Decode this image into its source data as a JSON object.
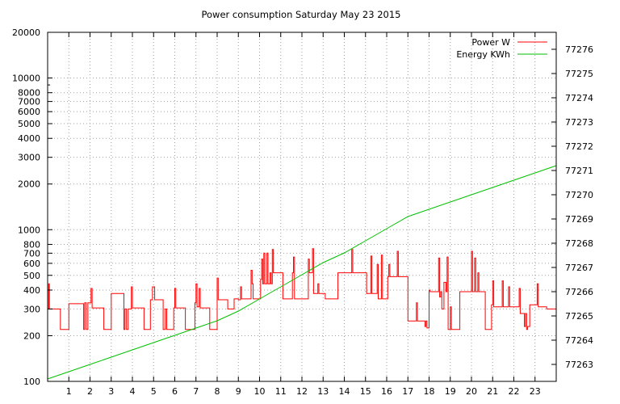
{
  "chart_data": {
    "type": "line",
    "title": "Power consumption Saturday May 23 2015",
    "xlabel": "",
    "ylabel": "",
    "y2label": "",
    "x_ticks": [
      1,
      2,
      3,
      4,
      5,
      6,
      7,
      8,
      9,
      10,
      11,
      12,
      13,
      14,
      15,
      16,
      17,
      18,
      19,
      20,
      21,
      22,
      23
    ],
    "xlim": [
      0,
      24
    ],
    "ylim": [
      100,
      20000
    ],
    "y_scale": "log",
    "y_ticks": [
      100,
      200,
      300,
      400,
      500,
      600,
      700,
      800,
      1000,
      2000,
      3000,
      4000,
      5000,
      6000,
      7000,
      8000,
      10000,
      20000
    ],
    "y2lim": [
      77262.3,
      77276.7
    ],
    "y2_ticks": [
      77263,
      77264,
      77265,
      77266,
      77267,
      77268,
      77269,
      77270,
      77271,
      77272,
      77273,
      77274,
      77275,
      77276
    ],
    "grid": true,
    "legend_position": "top-right",
    "series": [
      {
        "name": "Power W",
        "axis": "left",
        "color": "#ff0000",
        "step": true,
        "points": [
          [
            0.0,
            300
          ],
          [
            0.05,
            440
          ],
          [
            0.08,
            300
          ],
          [
            0.55,
            300
          ],
          [
            0.6,
            220
          ],
          [
            0.95,
            220
          ],
          [
            1.0,
            325
          ],
          [
            1.65,
            325
          ],
          [
            1.7,
            220
          ],
          [
            1.75,
            330
          ],
          [
            1.82,
            220
          ],
          [
            1.9,
            330
          ],
          [
            2.05,
            410
          ],
          [
            2.1,
            305
          ],
          [
            2.6,
            305
          ],
          [
            2.65,
            220
          ],
          [
            2.95,
            220
          ],
          [
            3.0,
            380
          ],
          [
            3.55,
            380
          ],
          [
            3.6,
            220
          ],
          [
            3.65,
            300
          ],
          [
            3.72,
            220
          ],
          [
            3.8,
            300
          ],
          [
            3.95,
            420
          ],
          [
            4.0,
            305
          ],
          [
            4.5,
            305
          ],
          [
            4.55,
            220
          ],
          [
            4.8,
            220
          ],
          [
            4.85,
            345
          ],
          [
            4.95,
            420
          ],
          [
            5.05,
            345
          ],
          [
            5.4,
            345
          ],
          [
            5.45,
            220
          ],
          [
            5.55,
            300
          ],
          [
            5.62,
            220
          ],
          [
            5.85,
            220
          ],
          [
            5.95,
            305
          ],
          [
            6.0,
            410
          ],
          [
            6.05,
            305
          ],
          [
            6.45,
            305
          ],
          [
            6.5,
            220
          ],
          [
            6.9,
            220
          ],
          [
            6.95,
            330
          ],
          [
            7.0,
            440
          ],
          [
            7.05,
            310
          ],
          [
            7.15,
            410
          ],
          [
            7.2,
            305
          ],
          [
            7.6,
            305
          ],
          [
            7.65,
            220
          ],
          [
            7.95,
            220
          ],
          [
            8.0,
            480
          ],
          [
            8.05,
            345
          ],
          [
            8.45,
            345
          ],
          [
            8.5,
            300
          ],
          [
            8.75,
            300
          ],
          [
            8.8,
            350
          ],
          [
            9.0,
            345
          ],
          [
            9.1,
            420
          ],
          [
            9.15,
            350
          ],
          [
            9.55,
            350
          ],
          [
            9.6,
            540
          ],
          [
            9.65,
            440
          ],
          [
            9.7,
            350
          ],
          [
            10.0,
            350
          ],
          [
            10.05,
            470
          ],
          [
            10.1,
            640
          ],
          [
            10.15,
            440
          ],
          [
            10.2,
            700
          ],
          [
            10.25,
            440
          ],
          [
            10.35,
            700
          ],
          [
            10.4,
            440
          ],
          [
            10.5,
            520
          ],
          [
            10.55,
            440
          ],
          [
            10.6,
            740
          ],
          [
            10.65,
            520
          ],
          [
            11.05,
            520
          ],
          [
            11.1,
            350
          ],
          [
            11.5,
            350
          ],
          [
            11.55,
            520
          ],
          [
            11.6,
            660
          ],
          [
            11.65,
            350
          ],
          [
            12.25,
            350
          ],
          [
            12.3,
            640
          ],
          [
            12.35,
            520
          ],
          [
            12.45,
            520
          ],
          [
            12.5,
            750
          ],
          [
            12.55,
            380
          ],
          [
            12.7,
            380
          ],
          [
            12.75,
            440
          ],
          [
            12.8,
            380
          ],
          [
            13.05,
            380
          ],
          [
            13.1,
            350
          ],
          [
            13.65,
            350
          ],
          [
            13.7,
            520
          ],
          [
            14.3,
            520
          ],
          [
            14.35,
            740
          ],
          [
            14.4,
            520
          ],
          [
            15.0,
            520
          ],
          [
            15.05,
            380
          ],
          [
            15.2,
            380
          ],
          [
            15.25,
            670
          ],
          [
            15.3,
            380
          ],
          [
            15.5,
            380
          ],
          [
            15.55,
            590
          ],
          [
            15.6,
            350
          ],
          [
            15.7,
            350
          ],
          [
            15.75,
            680
          ],
          [
            15.8,
            350
          ],
          [
            16.0,
            350
          ],
          [
            16.05,
            490
          ],
          [
            16.1,
            590
          ],
          [
            16.15,
            490
          ],
          [
            16.45,
            490
          ],
          [
            16.5,
            720
          ],
          [
            16.55,
            490
          ],
          [
            16.95,
            490
          ],
          [
            17.0,
            250
          ],
          [
            17.35,
            250
          ],
          [
            17.4,
            330
          ],
          [
            17.45,
            250
          ],
          [
            17.75,
            250
          ],
          [
            17.8,
            230
          ],
          [
            17.85,
            250
          ],
          [
            17.9,
            225
          ],
          [
            18.0,
            400
          ],
          [
            18.05,
            390
          ],
          [
            18.4,
            390
          ],
          [
            18.45,
            650
          ],
          [
            18.5,
            360
          ],
          [
            18.55,
            390
          ],
          [
            18.6,
            300
          ],
          [
            18.65,
            300
          ],
          [
            18.7,
            450
          ],
          [
            18.8,
            390
          ],
          [
            18.85,
            660
          ],
          [
            18.9,
            220
          ],
          [
            19.0,
            310
          ],
          [
            19.05,
            220
          ],
          [
            19.4,
            220
          ],
          [
            19.45,
            390
          ],
          [
            19.95,
            390
          ],
          [
            20.0,
            720
          ],
          [
            20.05,
            390
          ],
          [
            20.15,
            650
          ],
          [
            20.2,
            390
          ],
          [
            20.3,
            520
          ],
          [
            20.35,
            390
          ],
          [
            20.6,
            390
          ],
          [
            20.65,
            220
          ],
          [
            20.9,
            220
          ],
          [
            20.95,
            320
          ],
          [
            21.0,
            460
          ],
          [
            21.05,
            310
          ],
          [
            21.4,
            310
          ],
          [
            21.45,
            460
          ],
          [
            21.5,
            310
          ],
          [
            21.7,
            310
          ],
          [
            21.75,
            420
          ],
          [
            21.8,
            310
          ],
          [
            22.2,
            310
          ],
          [
            22.25,
            410
          ],
          [
            22.3,
            280
          ],
          [
            22.45,
            280
          ],
          [
            22.5,
            230
          ],
          [
            22.55,
            280
          ],
          [
            22.6,
            220
          ],
          [
            22.65,
            230
          ],
          [
            22.75,
            320
          ],
          [
            23.05,
            320
          ],
          [
            23.1,
            440
          ],
          [
            23.15,
            310
          ],
          [
            23.5,
            310
          ],
          [
            23.55,
            300
          ],
          [
            24.0,
            300
          ]
        ]
      },
      {
        "name": "Energy KWh",
        "axis": "right",
        "color": "#00c000",
        "step": false,
        "points": [
          [
            0.0,
            77262.4
          ],
          [
            1.0,
            77262.7
          ],
          [
            2.0,
            77263.0
          ],
          [
            3.0,
            77263.3
          ],
          [
            4.0,
            77263.6
          ],
          [
            5.0,
            77263.9
          ],
          [
            6.0,
            77264.2
          ],
          [
            7.0,
            77264.5
          ],
          [
            8.0,
            77264.8
          ],
          [
            9.0,
            77265.2
          ],
          [
            10.0,
            77265.7
          ],
          [
            11.0,
            77266.2
          ],
          [
            12.0,
            77266.7
          ],
          [
            13.0,
            77267.2
          ],
          [
            14.0,
            77267.6
          ],
          [
            15.0,
            77268.1
          ],
          [
            16.0,
            77268.6
          ],
          [
            17.0,
            77269.1
          ],
          [
            18.0,
            77269.4
          ],
          [
            19.0,
            77269.7
          ],
          [
            20.0,
            77270.0
          ],
          [
            21.0,
            77270.3
          ],
          [
            22.0,
            77270.6
          ],
          [
            23.0,
            77270.9
          ],
          [
            24.0,
            77271.2
          ]
        ]
      }
    ]
  }
}
